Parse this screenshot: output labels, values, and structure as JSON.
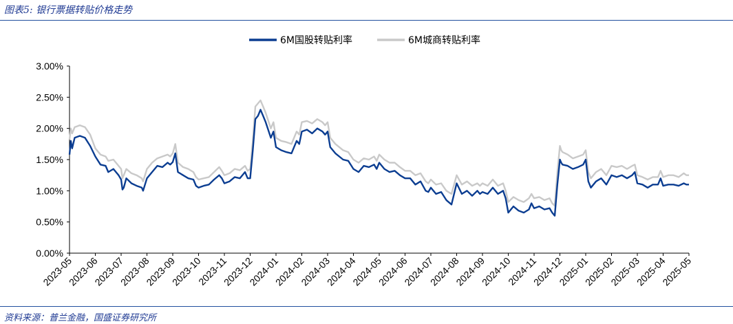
{
  "header": {
    "figure_title": "图表5:  银行票据转贴价格走势"
  },
  "footer": {
    "source": "资料来源：普兰金融，国盛证券研究所"
  },
  "colors": {
    "series1": "#0b3d91",
    "series2": "#c9c9c9",
    "rule": "#1f4e9e",
    "title": "#1f3a93"
  },
  "chart_data": {
    "type": "line",
    "title": "",
    "xlabel": "",
    "ylabel": "",
    "ylim": [
      0,
      3.0
    ],
    "y_ticks": [
      "0.00%",
      "0.50%",
      "1.00%",
      "1.50%",
      "2.00%",
      "2.50%",
      "3.00%"
    ],
    "x_ticks": [
      "2023-05",
      "2023-06",
      "2023-07",
      "2023-08",
      "2023-09",
      "2023-10",
      "2023-11",
      "2023-12",
      "2024-01",
      "2024-02",
      "2024-03",
      "2024-04",
      "2024-05",
      "2024-06",
      "2024-07",
      "2024-08",
      "2024-09",
      "2024-10",
      "2024-11",
      "2024-12",
      "2025-01",
      "2025-02",
      "2025-03",
      "2025-04",
      "2025-05"
    ],
    "legend": {
      "placement": "top-center"
    },
    "series": [
      {
        "name": "6M国股转贴利率",
        "color": "#0b3d91",
        "points": [
          [
            0,
            1.58
          ],
          [
            0.05,
            1.8
          ],
          [
            0.1,
            1.68
          ],
          [
            0.2,
            1.85
          ],
          [
            0.4,
            1.88
          ],
          [
            0.6,
            1.85
          ],
          [
            0.8,
            1.72
          ],
          [
            1.0,
            1.55
          ],
          [
            1.2,
            1.42
          ],
          [
            1.4,
            1.4
          ],
          [
            1.5,
            1.3
          ],
          [
            1.7,
            1.35
          ],
          [
            1.8,
            1.3
          ],
          [
            1.9,
            1.25
          ],
          [
            2.0,
            1.18
          ],
          [
            2.05,
            1.02
          ],
          [
            2.1,
            1.05
          ],
          [
            2.2,
            1.2
          ],
          [
            2.4,
            1.12
          ],
          [
            2.6,
            1.08
          ],
          [
            2.8,
            1.05
          ],
          [
            2.85,
            1.0
          ],
          [
            3.0,
            1.2
          ],
          [
            3.2,
            1.3
          ],
          [
            3.4,
            1.4
          ],
          [
            3.6,
            1.38
          ],
          [
            3.8,
            1.45
          ],
          [
            3.9,
            1.42
          ],
          [
            4.0,
            1.46
          ],
          [
            4.1,
            1.6
          ],
          [
            4.2,
            1.3
          ],
          [
            4.4,
            1.25
          ],
          [
            4.6,
            1.2
          ],
          [
            4.8,
            1.18
          ],
          [
            4.9,
            1.08
          ],
          [
            5.0,
            1.05
          ],
          [
            5.2,
            1.08
          ],
          [
            5.4,
            1.1
          ],
          [
            5.6,
            1.18
          ],
          [
            5.8,
            1.25
          ],
          [
            5.9,
            1.2
          ],
          [
            6.0,
            1.12
          ],
          [
            6.2,
            1.15
          ],
          [
            6.4,
            1.22
          ],
          [
            6.6,
            1.2
          ],
          [
            6.8,
            1.3
          ],
          [
            6.9,
            1.2
          ],
          [
            7.0,
            1.2
          ],
          [
            7.1,
            1.65
          ],
          [
            7.2,
            2.15
          ],
          [
            7.3,
            2.2
          ],
          [
            7.4,
            2.3
          ],
          [
            7.5,
            2.2
          ],
          [
            7.6,
            2.1
          ],
          [
            7.8,
            1.85
          ],
          [
            7.9,
            1.95
          ],
          [
            8.0,
            1.7
          ],
          [
            8.2,
            1.65
          ],
          [
            8.4,
            1.62
          ],
          [
            8.6,
            1.6
          ],
          [
            8.8,
            1.8
          ],
          [
            8.9,
            1.75
          ],
          [
            9.0,
            1.95
          ],
          [
            9.2,
            1.98
          ],
          [
            9.4,
            1.92
          ],
          [
            9.6,
            2.0
          ],
          [
            9.8,
            1.95
          ],
          [
            9.9,
            1.9
          ],
          [
            10.0,
            1.95
          ],
          [
            10.1,
            1.7
          ],
          [
            10.3,
            1.6
          ],
          [
            10.6,
            1.5
          ],
          [
            10.8,
            1.48
          ],
          [
            11.0,
            1.35
          ],
          [
            11.2,
            1.3
          ],
          [
            11.4,
            1.4
          ],
          [
            11.6,
            1.38
          ],
          [
            11.8,
            1.42
          ],
          [
            11.9,
            1.35
          ],
          [
            12.0,
            1.45
          ],
          [
            12.2,
            1.35
          ],
          [
            12.4,
            1.3
          ],
          [
            12.6,
            1.32
          ],
          [
            12.8,
            1.25
          ],
          [
            13.0,
            1.2
          ],
          [
            13.2,
            1.2
          ],
          [
            13.4,
            1.1
          ],
          [
            13.6,
            1.15
          ],
          [
            13.8,
            1.0
          ],
          [
            13.9,
            0.98
          ],
          [
            14.0,
            1.05
          ],
          [
            14.2,
            0.95
          ],
          [
            14.4,
            0.98
          ],
          [
            14.6,
            0.85
          ],
          [
            14.8,
            0.78
          ],
          [
            15.0,
            1.12
          ],
          [
            15.2,
            0.95
          ],
          [
            15.4,
            1.0
          ],
          [
            15.6,
            0.92
          ],
          [
            15.8,
            1.0
          ],
          [
            15.9,
            0.95
          ],
          [
            16.0,
            0.98
          ],
          [
            16.2,
            0.95
          ],
          [
            16.4,
            1.05
          ],
          [
            16.6,
            0.95
          ],
          [
            16.8,
            1.0
          ],
          [
            16.9,
            0.88
          ],
          [
            17.0,
            0.65
          ],
          [
            17.2,
            0.75
          ],
          [
            17.4,
            0.68
          ],
          [
            17.6,
            0.65
          ],
          [
            17.8,
            0.7
          ],
          [
            17.9,
            0.8
          ],
          [
            18.0,
            0.72
          ],
          [
            18.2,
            0.75
          ],
          [
            18.4,
            0.7
          ],
          [
            18.6,
            0.72
          ],
          [
            18.7,
            0.65
          ],
          [
            18.8,
            0.6
          ],
          [
            18.9,
            1.1
          ],
          [
            19.0,
            1.5
          ],
          [
            19.05,
            1.45
          ],
          [
            19.1,
            1.42
          ],
          [
            19.3,
            1.4
          ],
          [
            19.5,
            1.35
          ],
          [
            19.7,
            1.38
          ],
          [
            19.9,
            1.42
          ],
          [
            20.0,
            1.5
          ],
          [
            20.1,
            1.15
          ],
          [
            20.2,
            1.05
          ],
          [
            20.4,
            1.15
          ],
          [
            20.6,
            1.2
          ],
          [
            20.8,
            1.1
          ],
          [
            21.0,
            1.25
          ],
          [
            21.2,
            1.22
          ],
          [
            21.4,
            1.25
          ],
          [
            21.6,
            1.2
          ],
          [
            21.8,
            1.25
          ],
          [
            21.9,
            1.3
          ],
          [
            22.0,
            1.12
          ],
          [
            22.2,
            1.1
          ],
          [
            22.4,
            1.05
          ],
          [
            22.6,
            1.1
          ],
          [
            22.8,
            1.1
          ],
          [
            22.9,
            1.2
          ],
          [
            23.0,
            1.08
          ],
          [
            23.2,
            1.1
          ],
          [
            23.4,
            1.1
          ],
          [
            23.6,
            1.08
          ],
          [
            23.8,
            1.12
          ],
          [
            23.9,
            1.1
          ],
          [
            24.0,
            1.1
          ]
        ]
      },
      {
        "name": "6M城商转贴利率",
        "color": "#c9c9c9",
        "points": [
          [
            0,
            1.82
          ],
          [
            0.05,
            2.0
          ],
          [
            0.1,
            1.92
          ],
          [
            0.2,
            2.02
          ],
          [
            0.4,
            2.05
          ],
          [
            0.6,
            2.02
          ],
          [
            0.8,
            1.9
          ],
          [
            1.0,
            1.68
          ],
          [
            1.2,
            1.58
          ],
          [
            1.4,
            1.55
          ],
          [
            1.5,
            1.48
          ],
          [
            1.7,
            1.5
          ],
          [
            1.8,
            1.45
          ],
          [
            1.9,
            1.4
          ],
          [
            2.0,
            1.35
          ],
          [
            2.05,
            1.2
          ],
          [
            2.1,
            1.25
          ],
          [
            2.2,
            1.35
          ],
          [
            2.4,
            1.28
          ],
          [
            2.6,
            1.25
          ],
          [
            2.8,
            1.2
          ],
          [
            2.85,
            1.15
          ],
          [
            3.0,
            1.35
          ],
          [
            3.2,
            1.45
          ],
          [
            3.4,
            1.52
          ],
          [
            3.6,
            1.55
          ],
          [
            3.8,
            1.58
          ],
          [
            3.9,
            1.55
          ],
          [
            4.0,
            1.6
          ],
          [
            4.1,
            1.75
          ],
          [
            4.2,
            1.45
          ],
          [
            4.4,
            1.38
          ],
          [
            4.6,
            1.35
          ],
          [
            4.8,
            1.3
          ],
          [
            4.9,
            1.22
          ],
          [
            5.0,
            1.18
          ],
          [
            5.2,
            1.2
          ],
          [
            5.4,
            1.22
          ],
          [
            5.6,
            1.3
          ],
          [
            5.8,
            1.38
          ],
          [
            5.9,
            1.32
          ],
          [
            6.0,
            1.25
          ],
          [
            6.2,
            1.28
          ],
          [
            6.4,
            1.35
          ],
          [
            6.6,
            1.33
          ],
          [
            6.8,
            1.4
          ],
          [
            6.9,
            1.32
          ],
          [
            7.0,
            1.35
          ],
          [
            7.1,
            1.8
          ],
          [
            7.2,
            2.35
          ],
          [
            7.3,
            2.4
          ],
          [
            7.4,
            2.45
          ],
          [
            7.5,
            2.35
          ],
          [
            7.6,
            2.25
          ],
          [
            7.8,
            2.0
          ],
          [
            7.9,
            2.1
          ],
          [
            8.0,
            1.85
          ],
          [
            8.2,
            1.8
          ],
          [
            8.4,
            1.78
          ],
          [
            8.6,
            1.75
          ],
          [
            8.8,
            1.95
          ],
          [
            8.9,
            1.9
          ],
          [
            9.0,
            2.1
          ],
          [
            9.2,
            2.12
          ],
          [
            9.4,
            2.08
          ],
          [
            9.6,
            2.15
          ],
          [
            9.8,
            2.1
          ],
          [
            9.9,
            2.05
          ],
          [
            10.0,
            2.1
          ],
          [
            10.1,
            1.85
          ],
          [
            10.3,
            1.75
          ],
          [
            10.6,
            1.65
          ],
          [
            10.8,
            1.62
          ],
          [
            11.0,
            1.5
          ],
          [
            11.2,
            1.45
          ],
          [
            11.4,
            1.52
          ],
          [
            11.6,
            1.5
          ],
          [
            11.8,
            1.55
          ],
          [
            11.9,
            1.48
          ],
          [
            12.0,
            1.58
          ],
          [
            12.2,
            1.5
          ],
          [
            12.4,
            1.45
          ],
          [
            12.6,
            1.45
          ],
          [
            12.8,
            1.38
          ],
          [
            13.0,
            1.32
          ],
          [
            13.2,
            1.32
          ],
          [
            13.4,
            1.25
          ],
          [
            13.6,
            1.28
          ],
          [
            13.8,
            1.15
          ],
          [
            13.9,
            1.12
          ],
          [
            14.0,
            1.18
          ],
          [
            14.2,
            1.1
          ],
          [
            14.4,
            1.12
          ],
          [
            14.6,
            1.0
          ],
          [
            14.8,
            0.95
          ],
          [
            15.0,
            1.25
          ],
          [
            15.2,
            1.1
          ],
          [
            15.4,
            1.15
          ],
          [
            15.6,
            1.08
          ],
          [
            15.8,
            1.12
          ],
          [
            15.9,
            1.08
          ],
          [
            16.0,
            1.12
          ],
          [
            16.2,
            1.08
          ],
          [
            16.4,
            1.18
          ],
          [
            16.6,
            1.08
          ],
          [
            16.8,
            1.12
          ],
          [
            16.9,
            1.0
          ],
          [
            17.0,
            0.82
          ],
          [
            17.2,
            0.9
          ],
          [
            17.4,
            0.85
          ],
          [
            17.6,
            0.82
          ],
          [
            17.8,
            0.88
          ],
          [
            17.9,
            0.95
          ],
          [
            18.0,
            0.88
          ],
          [
            18.2,
            0.9
          ],
          [
            18.4,
            0.85
          ],
          [
            18.6,
            0.88
          ],
          [
            18.7,
            0.8
          ],
          [
            18.8,
            0.76
          ],
          [
            18.9,
            1.3
          ],
          [
            19.0,
            1.72
          ],
          [
            19.05,
            1.65
          ],
          [
            19.1,
            1.62
          ],
          [
            19.3,
            1.58
          ],
          [
            19.5,
            1.52
          ],
          [
            19.7,
            1.55
          ],
          [
            19.9,
            1.58
          ],
          [
            20.0,
            1.65
          ],
          [
            20.1,
            1.3
          ],
          [
            20.2,
            1.2
          ],
          [
            20.4,
            1.3
          ],
          [
            20.6,
            1.35
          ],
          [
            20.8,
            1.25
          ],
          [
            21.0,
            1.4
          ],
          [
            21.2,
            1.38
          ],
          [
            21.4,
            1.4
          ],
          [
            21.6,
            1.35
          ],
          [
            21.8,
            1.4
          ],
          [
            21.9,
            1.42
          ],
          [
            22.0,
            1.25
          ],
          [
            22.2,
            1.22
          ],
          [
            22.4,
            1.18
          ],
          [
            22.6,
            1.22
          ],
          [
            22.8,
            1.22
          ],
          [
            22.9,
            1.32
          ],
          [
            23.0,
            1.22
          ],
          [
            23.2,
            1.25
          ],
          [
            23.4,
            1.25
          ],
          [
            23.6,
            1.22
          ],
          [
            23.8,
            1.28
          ],
          [
            23.9,
            1.25
          ],
          [
            24.0,
            1.25
          ]
        ]
      }
    ]
  }
}
